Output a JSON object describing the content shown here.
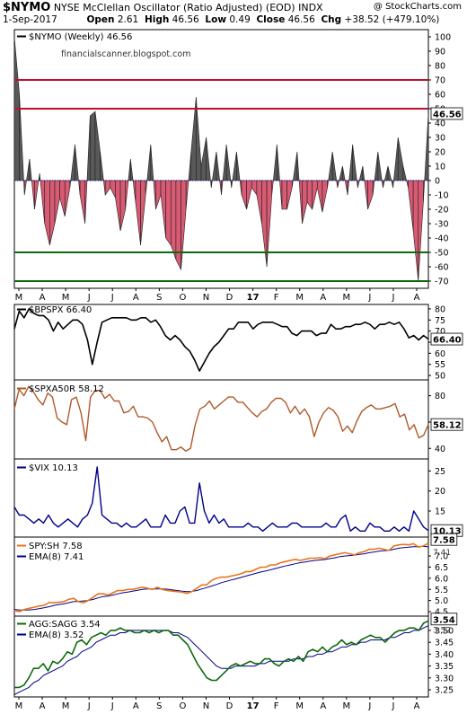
{
  "header": {
    "symbol": "$NYMO",
    "description": "NYSE McClellan Oscillator (Ratio Adjusted) (EOD)",
    "exchange": "INDX",
    "credit": "@ StockCharts.com",
    "date": "1-Sep-2017",
    "open_label": "Open",
    "open": "2.61",
    "high_label": "High",
    "high": "46.56",
    "low_label": "Low",
    "low": "0.49",
    "close_label": "Close",
    "close": "46.56",
    "chg_label": "Chg",
    "chg": "+38.52 (+479.10%)"
  },
  "colors": {
    "positive_fill": "#595959",
    "negative_fill": "#d85a73",
    "red_line": "#c0102a",
    "green_line": "#0d6a0d",
    "zero_line": "#0000a0",
    "bpspx": "#000000",
    "spxa50r": "#b05a2a",
    "vix": "#00008b",
    "spy_sh": "#e8741c",
    "ema": "#00008b",
    "agg_sagg": "#0d6a0d"
  },
  "x_axis": {
    "labels": [
      "M",
      "A",
      "M",
      "J",
      "J",
      "A",
      "S",
      "O",
      "N",
      "D",
      "17",
      "F",
      "M",
      "A",
      "M",
      "J",
      "J",
      "A"
    ],
    "bold_index": 10
  },
  "chart_data": [
    {
      "type": "area",
      "title": "$NYMO (Weekly) 46.56",
      "watermark": "financialscanner.blogspot.com",
      "last_value_label": "46.56",
      "ylim": [
        -75,
        105
      ],
      "yticks": [
        100,
        90,
        80,
        70,
        60,
        50,
        40,
        30,
        20,
        10,
        0,
        -10,
        -20,
        -30,
        -40,
        -50,
        -60,
        -70
      ],
      "reference_lines": {
        "red": [
          70,
          50
        ],
        "green": [
          -50,
          -70
        ],
        "zero": 0
      },
      "values": [
        100,
        60,
        -10,
        15,
        -20,
        5,
        -30,
        -45,
        -30,
        -12,
        -25,
        -5,
        25,
        -10,
        -30,
        45,
        48,
        20,
        -10,
        -5,
        -12,
        -35,
        -20,
        15,
        -15,
        -45,
        -10,
        25,
        -20,
        -10,
        -40,
        -45,
        -55,
        -62,
        -20,
        20,
        58,
        10,
        30,
        -5,
        20,
        -10,
        25,
        -5,
        20,
        -10,
        -20,
        -5,
        -10,
        -30,
        -60,
        -10,
        25,
        -20,
        -20,
        -5,
        20,
        -30,
        -15,
        -20,
        -5,
        -22,
        -5,
        20,
        -5,
        10,
        -10,
        25,
        -5,
        10,
        -20,
        -10,
        20,
        -5,
        10,
        -5,
        30,
        10,
        -5,
        -35,
        -70,
        -15,
        46.56
      ]
    },
    {
      "type": "line",
      "title": "$BPSPX 66.40",
      "last_value_label": "66.40",
      "ylim": [
        48,
        82
      ],
      "yticks": [
        80,
        75,
        70,
        65,
        60,
        55,
        50
      ],
      "values": [
        71,
        79,
        76,
        80,
        78,
        77,
        77,
        75,
        70,
        74,
        71,
        73,
        75,
        75,
        73,
        66,
        55,
        65,
        74,
        75,
        76,
        76,
        76,
        76,
        75,
        75,
        76,
        76,
        74,
        75,
        72,
        68,
        66,
        68,
        66,
        63,
        61,
        57,
        52,
        56,
        60,
        63,
        65,
        68,
        71,
        71,
        74,
        74,
        74,
        71,
        73,
        74,
        74,
        74,
        73,
        72,
        72,
        69,
        68,
        70,
        70,
        70,
        68,
        69,
        69,
        73,
        71,
        71,
        72,
        72,
        73,
        73,
        74,
        73,
        71,
        73,
        73,
        74,
        73,
        74,
        71,
        67,
        68,
        66,
        68,
        66.4
      ]
    },
    {
      "type": "line",
      "title": "$SPXA50R 58.12",
      "last_value_label": "58.12",
      "ylim": [
        32,
        92
      ],
      "yticks": [
        80,
        60,
        40
      ],
      "values": [
        70,
        85,
        80,
        87,
        83,
        77,
        73,
        82,
        79,
        63,
        60,
        58,
        77,
        79,
        67,
        46,
        79,
        84,
        84,
        78,
        81,
        76,
        76,
        67,
        68,
        72,
        64,
        64,
        63,
        60,
        52,
        45,
        49,
        39,
        39,
        41,
        38,
        40,
        58,
        70,
        72,
        76,
        70,
        73,
        76,
        79,
        79,
        75,
        75,
        71,
        67,
        64,
        68,
        70,
        75,
        78,
        78,
        75,
        67,
        72,
        66,
        70,
        64,
        49,
        60,
        67,
        71,
        69,
        64,
        53,
        57,
        52,
        61,
        68,
        71,
        73,
        70,
        70,
        71,
        72,
        74,
        64,
        66,
        54,
        58,
        48,
        50,
        58.12
      ]
    },
    {
      "type": "line",
      "title": "$VIX 10.13",
      "last_value_label": "10.13",
      "ylim": [
        8.5,
        28
      ],
      "yticks": [
        25,
        20,
        15
      ],
      "values": [
        16,
        14,
        14,
        13,
        12,
        13,
        12,
        14,
        12,
        11,
        12,
        13,
        12,
        11,
        13,
        14,
        17,
        26,
        14,
        13,
        12,
        12,
        11,
        12,
        11,
        11,
        12,
        13,
        11,
        11,
        11,
        14,
        12,
        12,
        15,
        16,
        12,
        12,
        22,
        15,
        12,
        14,
        12,
        13,
        11,
        11,
        11,
        11,
        12,
        11,
        11,
        10,
        11,
        12,
        11,
        11,
        11,
        12,
        12,
        11,
        11,
        11,
        11,
        11,
        12,
        11,
        11,
        13,
        14,
        10,
        11,
        10,
        10,
        12,
        11,
        11,
        10,
        10,
        11,
        10,
        11,
        10,
        15,
        13,
        11,
        10.13
      ]
    },
    {
      "type": "line",
      "title": "SPY:SH 7.58",
      "last_value_label": "7.58",
      "ema_title": "EMA(8) 7.41",
      "ema_last_value_label": "7.41",
      "ylim": [
        4.3,
        7.85
      ],
      "yticks": [
        7.0,
        6.5,
        6.0,
        5.5,
        5.0,
        4.5
      ],
      "series": [
        {
          "name": "SPY:SH 7.58",
          "values": [
            4.55,
            4.5,
            4.6,
            4.65,
            4.7,
            4.75,
            4.78,
            4.9,
            4.9,
            4.92,
            4.95,
            5.05,
            5.1,
            4.95,
            4.9,
            5.0,
            5.15,
            5.3,
            5.3,
            5.25,
            5.35,
            5.45,
            5.45,
            5.5,
            5.5,
            5.55,
            5.6,
            5.55,
            5.5,
            5.6,
            5.5,
            5.45,
            5.42,
            5.4,
            5.38,
            5.32,
            5.4,
            5.55,
            5.7,
            5.7,
            5.9,
            6.0,
            6.05,
            6.05,
            6.1,
            6.15,
            6.2,
            6.3,
            6.3,
            6.4,
            6.5,
            6.5,
            6.6,
            6.6,
            6.7,
            6.75,
            6.8,
            6.85,
            6.8,
            6.85,
            6.9,
            6.9,
            6.92,
            6.88,
            7.0,
            7.05,
            7.1,
            7.15,
            7.1,
            7.05,
            7.15,
            7.2,
            7.3,
            7.3,
            7.35,
            7.3,
            7.25,
            7.45,
            7.5,
            7.52,
            7.5,
            7.55,
            7.4,
            7.45,
            7.58
          ]
        },
        {
          "name": "EMA(8) 7.41",
          "values": [
            4.6,
            4.58,
            4.57,
            4.58,
            4.6,
            4.63,
            4.67,
            4.72,
            4.78,
            4.82,
            4.85,
            4.9,
            4.95,
            4.96,
            4.98,
            5.0,
            5.05,
            5.12,
            5.18,
            5.2,
            5.25,
            5.3,
            5.35,
            5.38,
            5.42,
            5.46,
            5.5,
            5.52,
            5.52,
            5.52,
            5.52,
            5.51,
            5.48,
            5.45,
            5.42,
            5.4,
            5.41,
            5.45,
            5.52,
            5.58,
            5.65,
            5.72,
            5.8,
            5.86,
            5.92,
            5.98,
            6.04,
            6.1,
            6.16,
            6.22,
            6.28,
            6.33,
            6.38,
            6.44,
            6.5,
            6.55,
            6.6,
            6.65,
            6.7,
            6.73,
            6.77,
            6.8,
            6.82,
            6.84,
            6.88,
            6.92,
            6.97,
            7.0,
            7.02,
            7.04,
            7.07,
            7.1,
            7.15,
            7.18,
            7.22,
            7.24,
            7.25,
            7.3,
            7.35,
            7.38,
            7.4,
            7.42,
            7.42,
            7.43,
            7.41
          ]
        }
      ]
    },
    {
      "type": "line",
      "title": "AGG:SAGG 3.54",
      "last_value_label": "3.54",
      "ema_title": "EMA(8) 3.52",
      "ema_last_value_label": "3.52",
      "ylim": [
        3.22,
        3.56
      ],
      "yticks": [
        3.5,
        3.45,
        3.4,
        3.35,
        3.3,
        3.25
      ],
      "series": [
        {
          "name": "AGG:SAGG 3.54",
          "values": [
            3.26,
            3.26,
            3.27,
            3.3,
            3.34,
            3.34,
            3.36,
            3.33,
            3.37,
            3.36,
            3.38,
            3.41,
            3.4,
            3.45,
            3.46,
            3.44,
            3.47,
            3.48,
            3.49,
            3.48,
            3.5,
            3.5,
            3.51,
            3.5,
            3.5,
            3.49,
            3.49,
            3.5,
            3.49,
            3.5,
            3.49,
            3.5,
            3.5,
            3.48,
            3.48,
            3.46,
            3.44,
            3.4,
            3.36,
            3.33,
            3.3,
            3.29,
            3.29,
            3.31,
            3.33,
            3.35,
            3.36,
            3.35,
            3.36,
            3.37,
            3.36,
            3.36,
            3.38,
            3.38,
            3.36,
            3.35,
            3.37,
            3.38,
            3.37,
            3.39,
            3.37,
            3.41,
            3.42,
            3.41,
            3.43,
            3.41,
            3.43,
            3.44,
            3.46,
            3.44,
            3.45,
            3.44,
            3.46,
            3.47,
            3.48,
            3.47,
            3.47,
            3.45,
            3.47,
            3.49,
            3.5,
            3.5,
            3.51,
            3.51,
            3.5,
            3.53,
            3.54
          ]
        },
        {
          "name": "EMA(8) 3.52",
          "values": [
            3.23,
            3.24,
            3.25,
            3.26,
            3.28,
            3.29,
            3.31,
            3.32,
            3.33,
            3.34,
            3.35,
            3.37,
            3.38,
            3.39,
            3.41,
            3.42,
            3.43,
            3.45,
            3.46,
            3.47,
            3.48,
            3.48,
            3.49,
            3.49,
            3.5,
            3.5,
            3.5,
            3.5,
            3.5,
            3.5,
            3.5,
            3.5,
            3.5,
            3.49,
            3.49,
            3.48,
            3.47,
            3.45,
            3.43,
            3.41,
            3.39,
            3.37,
            3.35,
            3.34,
            3.34,
            3.34,
            3.35,
            3.35,
            3.35,
            3.35,
            3.35,
            3.36,
            3.36,
            3.37,
            3.37,
            3.37,
            3.37,
            3.37,
            3.38,
            3.38,
            3.38,
            3.39,
            3.39,
            3.4,
            3.4,
            3.41,
            3.41,
            3.42,
            3.43,
            3.43,
            3.44,
            3.44,
            3.45,
            3.45,
            3.46,
            3.46,
            3.46,
            3.46,
            3.47,
            3.47,
            3.48,
            3.49,
            3.49,
            3.5,
            3.5,
            3.51,
            3.52
          ]
        }
      ]
    }
  ]
}
